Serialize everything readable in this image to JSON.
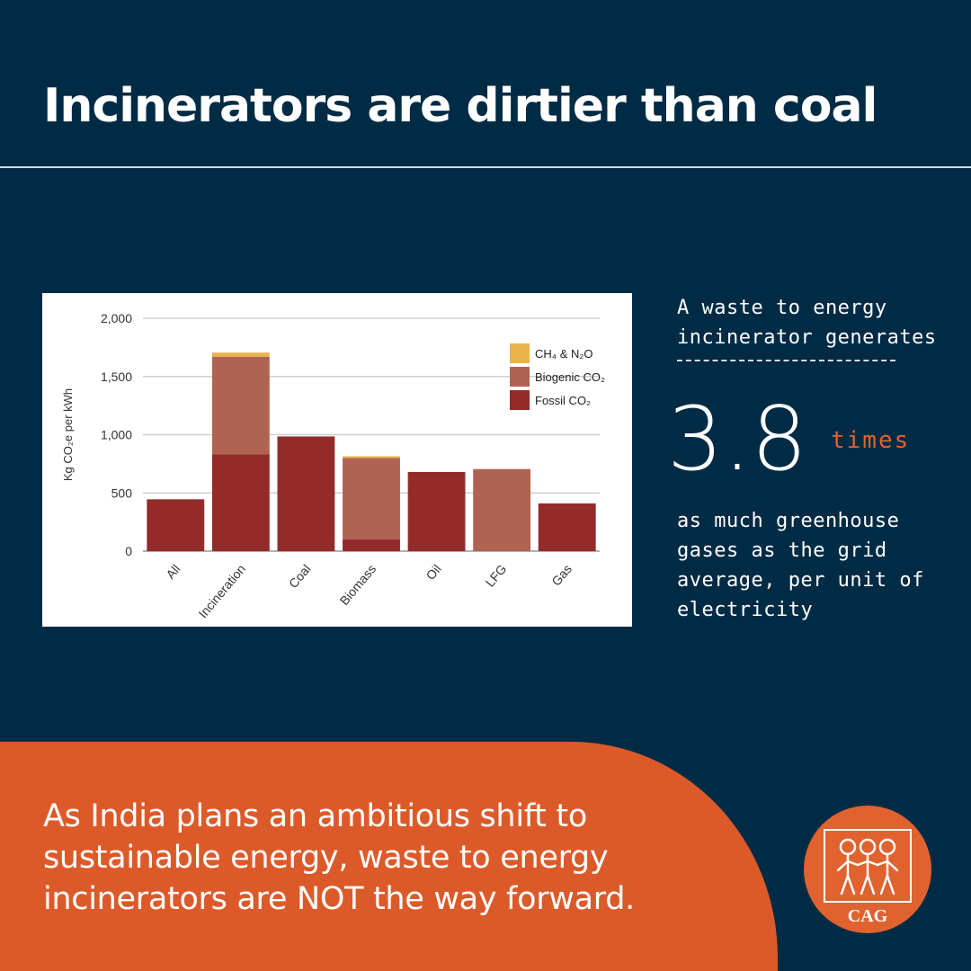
{
  "title": "Incinerators are dirtier than coal",
  "side": {
    "intro": "A waste to energy incinerator generates",
    "big_number": "3.8",
    "times_label": "times",
    "outro": "as much greenhouse gases as the grid average, per unit of electricity"
  },
  "bottom_text": "As India plans an ambitious shift to sustainable energy, waste to energy incinerators are NOT the way forward.",
  "logo": {
    "text": "CAG",
    "icon": "stick-figures-icon"
  },
  "colors": {
    "background": "#002b45",
    "accent": "#dc5a2a",
    "fossil": "#922b2a",
    "biogenic": "#b06352",
    "ch4_n2o": "#e9b44c"
  },
  "chart_data": {
    "type": "bar",
    "stacked": true,
    "ylabel": "Kg CO₂e per kWh",
    "ylim": [
      0,
      2000
    ],
    "yticks": [
      "0",
      "500",
      "1,000",
      "1,500",
      "2,000"
    ],
    "categories": [
      "All",
      "Incineration",
      "Coal",
      "Biomass",
      "Oil",
      "LFG",
      "Gas"
    ],
    "series": [
      {
        "name": "Fossil CO₂",
        "color": "#922b2a",
        "values": [
          445,
          830,
          985,
          100,
          680,
          0,
          410
        ]
      },
      {
        "name": "Biogenic CO₂",
        "color": "#b06352",
        "values": [
          0,
          840,
          0,
          700,
          0,
          705,
          0
        ]
      },
      {
        "name": "CH₄ & N₂O",
        "color": "#e9b44c",
        "values": [
          0,
          35,
          0,
          15,
          0,
          0,
          0
        ]
      }
    ],
    "legend_order": [
      "CH₄ & N₂O",
      "Biogenic CO₂",
      "Fossil CO₂"
    ],
    "legend": "top-right",
    "grid": true
  }
}
